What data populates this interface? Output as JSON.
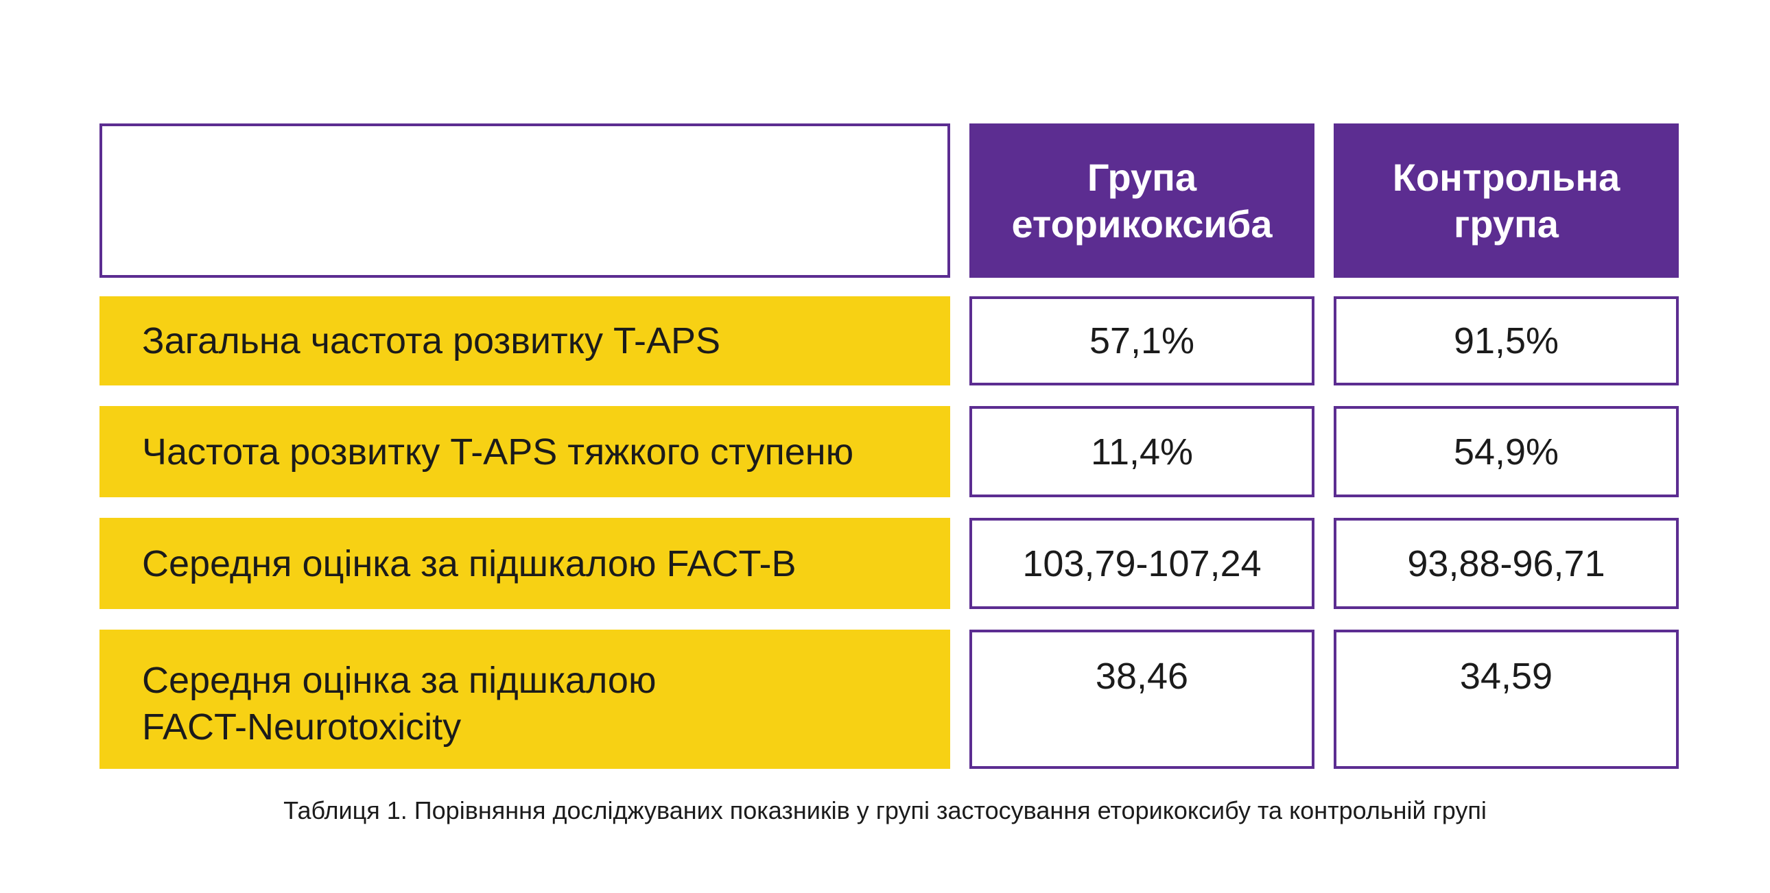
{
  "table": {
    "headers": [
      {
        "lines": [
          "Група",
          "еторикоксиба"
        ]
      },
      {
        "lines": [
          "Контрольна",
          "група"
        ]
      }
    ],
    "rows": [
      {
        "label_lines": [
          "Загальна частота розвитку T-APS"
        ],
        "values": [
          "57,1%",
          "91,5%"
        ]
      },
      {
        "label_lines": [
          "Частота розвитку T-APS тяжкого ступеню"
        ],
        "values": [
          "11,4%",
          "54,9%"
        ]
      },
      {
        "label_lines": [
          "Середня оцінка за підшкалою FACT-B"
        ],
        "values": [
          "103,79-107,24",
          "93,88-96,71"
        ]
      },
      {
        "label_lines": [
          "Середня оцінка за підшкалою",
          "FACT-Neurotoxicity"
        ],
        "values": [
          "38,46",
          "34,59"
        ]
      }
    ]
  },
  "caption": "Таблиця 1. Порівняння досліджуваних показників у групі застосування еторикоксибу та контрольній групі",
  "colors": {
    "header_bg": "#5c2d91",
    "label_bg": "#f7d114",
    "border": "#5c2d91"
  }
}
